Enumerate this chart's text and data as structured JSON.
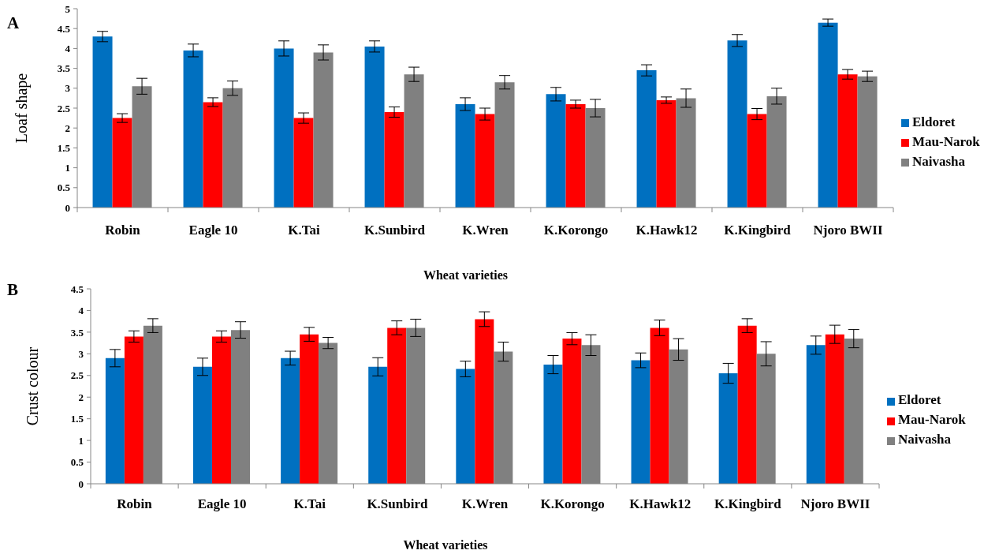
{
  "chart_data": [
    {
      "type": "bar",
      "title": "A",
      "xlabel": "Wheat varieties",
      "ylabel": "Loaf shape",
      "categories": [
        "Robin",
        "Eagle 10",
        "K.Tai",
        "K.Sunbird",
        "K.Wren",
        "K.Korongo",
        "K.Hawk12",
        "K.Kingbird",
        "Njoro BWII"
      ],
      "series": [
        {
          "name": "Eldoret",
          "color": "#0070c0",
          "values": [
            4.3,
            3.95,
            4.0,
            4.05,
            2.6,
            2.85,
            3.45,
            4.2,
            4.65
          ],
          "errors": [
            0.13,
            0.16,
            0.19,
            0.14,
            0.16,
            0.17,
            0.14,
            0.15,
            0.09
          ]
        },
        {
          "name": "Mau-Narok",
          "color": "#ff0000",
          "values": [
            2.25,
            2.65,
            2.25,
            2.4,
            2.35,
            2.6,
            2.7,
            2.35,
            3.35
          ],
          "errors": [
            0.11,
            0.11,
            0.13,
            0.13,
            0.15,
            0.1,
            0.08,
            0.14,
            0.12
          ]
        },
        {
          "name": "Naivasha",
          "color": "#808080",
          "values": [
            3.05,
            3.0,
            3.9,
            3.35,
            3.15,
            2.5,
            2.75,
            2.8,
            3.3
          ],
          "errors": [
            0.2,
            0.18,
            0.19,
            0.18,
            0.17,
            0.22,
            0.23,
            0.2,
            0.13
          ]
        }
      ],
      "ylim": [
        0,
        5
      ],
      "yticks": [
        0,
        0.5,
        1,
        1.5,
        2,
        2.5,
        3,
        3.5,
        4,
        4.5,
        5
      ],
      "legend": "right"
    },
    {
      "type": "bar",
      "title": "B",
      "xlabel": "Wheat varieties",
      "ylabel": "Crust colour",
      "categories": [
        "Robin",
        "Eagle 10",
        "K.Tai",
        "K.Sunbird",
        "K.Wren",
        "K.Korongo",
        "K.Hawk12",
        "K.Kingbird",
        "Njoro BWII"
      ],
      "series": [
        {
          "name": "Eldoret",
          "color": "#0070c0",
          "values": [
            2.9,
            2.7,
            2.9,
            2.7,
            2.65,
            2.75,
            2.85,
            2.55,
            3.2
          ],
          "errors": [
            0.2,
            0.2,
            0.16,
            0.21,
            0.18,
            0.21,
            0.17,
            0.23,
            0.21
          ]
        },
        {
          "name": "Mau-Narok",
          "color": "#ff0000",
          "values": [
            3.4,
            3.4,
            3.45,
            3.6,
            3.8,
            3.35,
            3.6,
            3.65,
            3.45
          ],
          "errors": [
            0.13,
            0.13,
            0.16,
            0.16,
            0.17,
            0.14,
            0.18,
            0.16,
            0.21
          ]
        },
        {
          "name": "Naivasha",
          "color": "#808080",
          "values": [
            3.65,
            3.55,
            3.25,
            3.6,
            3.05,
            3.2,
            3.1,
            3.0,
            3.35
          ],
          "errors": [
            0.16,
            0.19,
            0.13,
            0.2,
            0.22,
            0.24,
            0.25,
            0.28,
            0.21
          ]
        }
      ],
      "ylim": [
        0,
        4.5
      ],
      "yticks": [
        0,
        0.5,
        1,
        1.5,
        2,
        2.5,
        3,
        3.5,
        4,
        4.5
      ],
      "legend": "right"
    }
  ]
}
